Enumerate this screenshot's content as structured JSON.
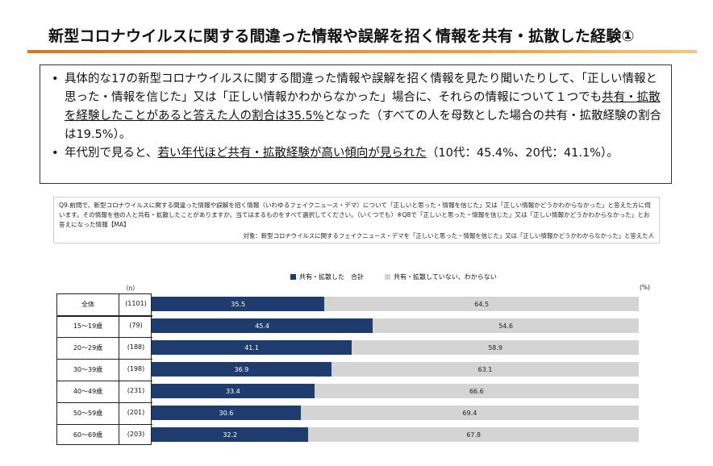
{
  "page_title": "新型コロナウイルスに関する間違った情報や誤解を招く情報を共有・拡散した経験①",
  "summary": {
    "b1_part1": "具体的な17の新型コロナウイルスに関する間違った情報や誤解を招く情報を見たり聞いたりして、「正しい情報と思った・情報を信じた」又は「正しい情報かわからなかった」場合に、それらの情報について１つでも",
    "b1_underline": "共有・拡散を経験したことがあると答えた人の割合は35.5%",
    "b1_part2": "となった（すべての人を母数とした場合の共有・拡散経験の割合は19.5%）。",
    "b2_part1": "年代別で見ると、",
    "b2_underline": "若い年代ほど共有・拡散経験が高い傾向が見られた",
    "b2_part2": "（10代：45.4%、20代：41.1%）。"
  },
  "question": {
    "text": "Q9.前問で、新型コロナウイルスに関する間違った情報や誤解を招く情報（いわゆるフェイクニュース・デマ）について「正しいと思った・情報を信じた」又は「正しい情報かどうかわからなかった」と答えた方に伺います。その情報を他の人と共有・拡散したことがありますか。当てはまるものをすべて選択してください。（いくつでも）※Q8で「正しいと思った・情報を信じた」又は「正しい情報かどうかわからなかった」とお答えになった情報【MA】",
    "target": "対象：新型コロナウイルスに関するフェイクニュース・デマを「正しいと思った・情報を信じた」又は「正しい情報かどうかわからなかった」と答えた人"
  },
  "chart_data": {
    "type": "bar",
    "stacked": true,
    "orientation": "horizontal",
    "n_header": "（n）",
    "unit_label": "(%)",
    "categories": [
      "全体",
      "15～19歳",
      "20～29歳",
      "30～39歳",
      "40～49歳",
      "50～59歳",
      "60～69歳"
    ],
    "n": [
      "(1101)",
      "(79)",
      "(188)",
      "(198)",
      "(231)",
      "(201)",
      "(203)"
    ],
    "series": [
      {
        "name": "共有・拡散した　合計",
        "color": "#1f3c6f",
        "values": [
          35.5,
          45.4,
          41.1,
          36.9,
          33.4,
          30.6,
          32.2
        ]
      },
      {
        "name": "共有・拡散していない、わからない",
        "color": "#d4d4d4",
        "values": [
          64.5,
          54.6,
          58.9,
          63.1,
          66.6,
          69.4,
          67.8
        ]
      }
    ],
    "xlim": [
      0,
      100
    ],
    "legend_position": "top"
  }
}
